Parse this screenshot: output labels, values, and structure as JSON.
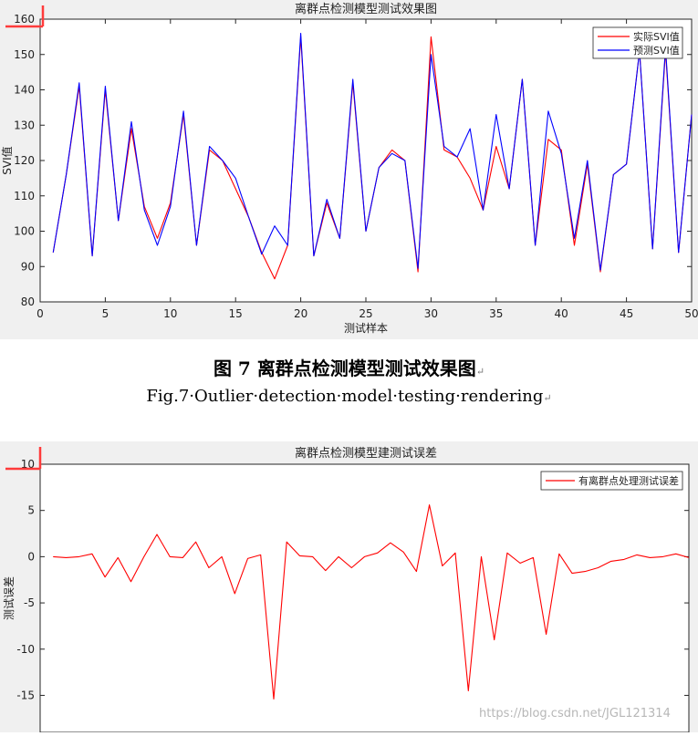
{
  "chart_data": [
    {
      "type": "line",
      "title": "离群点检测模型测试效果图",
      "xlabel": "测试样本",
      "ylabel": "SVI值",
      "xlim": [
        0,
        50
      ],
      "ylim": [
        80,
        160
      ],
      "xticks": [
        0,
        5,
        10,
        15,
        20,
        25,
        30,
        35,
        40,
        45,
        50
      ],
      "yticks": [
        80,
        90,
        100,
        110,
        120,
        130,
        140,
        150,
        160
      ],
      "legend_position": "top-right",
      "x": [
        1,
        2,
        3,
        4,
        5,
        6,
        7,
        8,
        9,
        10,
        11,
        12,
        13,
        14,
        15,
        16,
        17,
        18,
        19,
        20,
        21,
        22,
        23,
        24,
        25,
        26,
        27,
        28,
        29,
        30,
        31,
        32,
        33,
        34,
        35,
        36,
        37,
        38,
        39,
        40,
        41,
        42,
        43,
        44,
        45,
        46,
        47,
        48,
        49,
        50
      ],
      "series": [
        {
          "name": "实际SVI值",
          "color": "#ff0000",
          "values": [
            94,
            116,
            141,
            93,
            140,
            103,
            129,
            107,
            98,
            108,
            133,
            96,
            123,
            120,
            112,
            104,
            94,
            86.5,
            96,
            155,
            93,
            108,
            98,
            142,
            100,
            118,
            123,
            120,
            88.5,
            155,
            123,
            121,
            115,
            106,
            124,
            112,
            143,
            96,
            126,
            123,
            96,
            119,
            88.5,
            116,
            119,
            151,
            95,
            151,
            94,
            133
          ]
        },
        {
          "name": "预测SVI值",
          "color": "#0000ff",
          "values": [
            94,
            116,
            142,
            93,
            141,
            103,
            131,
            106,
            96,
            107,
            134,
            96,
            124,
            120,
            115,
            104,
            93.5,
            101.5,
            96,
            156,
            93,
            109,
            98,
            143,
            100,
            118,
            122,
            120,
            89.5,
            150,
            124,
            121,
            129,
            106,
            133,
            112,
            143,
            96,
            134,
            122,
            98,
            120,
            89,
            116,
            119,
            151,
            95,
            152,
            94,
            133
          ]
        }
      ]
    },
    {
      "type": "line",
      "title": "离群点检测模型建测试误差",
      "xlabel": "",
      "ylabel": "测试误差",
      "xlim": [
        0,
        50
      ],
      "ylim": [
        -19,
        10
      ],
      "yticks": [
        -15,
        -10,
        -5,
        0,
        5,
        10
      ],
      "legend_position": "top-right",
      "x": [
        1,
        2,
        3,
        4,
        5,
        6,
        7,
        8,
        9,
        10,
        11,
        12,
        13,
        14,
        15,
        16,
        17,
        18,
        19,
        20,
        21,
        22,
        23,
        24,
        25,
        26,
        27,
        28,
        29,
        30,
        31,
        32,
        33,
        34,
        35,
        36,
        37,
        38,
        39,
        40,
        41,
        42,
        43,
        44,
        45,
        46,
        47,
        48,
        49,
        50
      ],
      "series": [
        {
          "name": "有离群点处理测试误差",
          "color": "#ff0000",
          "values": [
            0,
            -0.1,
            0,
            0.3,
            -2.2,
            -0.1,
            -2.7,
            0,
            2.4,
            0,
            -0.1,
            1.6,
            -1.2,
            0,
            -4,
            -0.2,
            0.2,
            -15.4,
            1.6,
            0.1,
            0,
            -1.5,
            0,
            -1.2,
            0,
            0.4,
            1.5,
            0.5,
            -1.6,
            5.6,
            -1,
            0.4,
            -14.5,
            0,
            -9,
            0.4,
            -0.7,
            -0.1,
            -8.4,
            0.3,
            -1.8,
            -1.6,
            -1.2,
            -0.5,
            -0.3,
            0.2,
            -0.1,
            0,
            0.3,
            -0.1
          ]
        }
      ]
    }
  ],
  "captions": {
    "cn_label": "图",
    "cn_number": "7",
    "cn_text": "离群点检测模型测试效果图",
    "en_text": "Fig.7·Outlier·detection·model·testing·rendering",
    "return_mark": "↵"
  },
  "watermark": "https://blog.csdn.net/JGL121314"
}
